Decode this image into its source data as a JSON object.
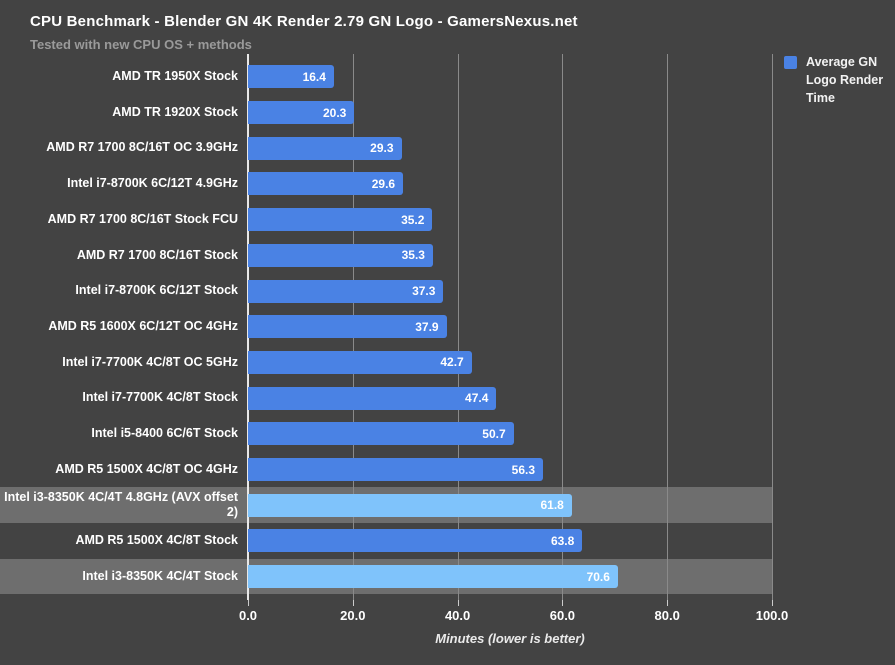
{
  "header": {
    "title": "CPU Benchmark - Blender GN 4K Render 2.79 GN Logo - GamersNexus.net",
    "subtitle": "Tested with new CPU OS + methods"
  },
  "legend": {
    "label": "Average GN Logo Render Time",
    "swatch_color": "#4a82e4",
    "position": "top-right"
  },
  "chart_data": {
    "type": "bar",
    "orientation": "horizontal",
    "title": "CPU Benchmark - Blender GN 4K Render 2.79 GN Logo - GamersNexus.net",
    "subtitle": "Tested with new CPU OS + methods",
    "series_name": "Average GN Logo Render Time",
    "xlabel": "Minutes (lower is better)",
    "ylabel": "",
    "xlim": [
      0,
      100
    ],
    "grid": true,
    "x_tick_values": [
      0,
      20,
      40,
      60,
      80,
      100
    ],
    "x_tick_labels": [
      "0.0",
      "20.0",
      "40.0",
      "60.0",
      "80.0",
      "100.0"
    ],
    "categories": [
      "AMD TR 1950X Stock",
      "AMD TR 1920X Stock",
      "AMD R7 1700 8C/16T OC 3.9GHz",
      "Intel i7-8700K 6C/12T 4.9GHz",
      "AMD R7 1700 8C/16T Stock FCU",
      "AMD R7 1700 8C/16T Stock",
      "Intel i7-8700K 6C/12T Stock",
      "AMD R5 1600X 6C/12T OC 4GHz",
      "Intel i7-7700K 4C/8T OC 5GHz",
      "Intel i7-7700K 4C/8T Stock",
      "Intel i5-8400 6C/6T Stock",
      "AMD R5 1500X 4C/8T OC 4GHz",
      "Intel i3-8350K 4C/4T 4.8GHz (AVX offset 2)",
      "AMD R5 1500X 4C/8T Stock",
      "Intel i3-8350K 4C/4T Stock"
    ],
    "values": [
      16.4,
      20.3,
      29.3,
      29.6,
      35.2,
      35.3,
      37.3,
      37.9,
      42.7,
      47.4,
      50.7,
      56.3,
      61.8,
      63.8,
      70.6
    ],
    "value_labels": [
      "16.4",
      "20.3",
      "29.3",
      "29.6",
      "35.2",
      "35.3",
      "37.3",
      "37.9",
      "42.7",
      "47.4",
      "50.7",
      "56.3",
      "61.8",
      "63.8",
      "70.6"
    ],
    "highlighted": [
      false,
      false,
      false,
      false,
      false,
      false,
      false,
      false,
      false,
      false,
      false,
      false,
      true,
      false,
      true
    ],
    "colors": {
      "background": "#434343",
      "bar": "#4a82e4",
      "bar_highlighted": "#7fc3fb",
      "row_highlight_band": "#6e6e6e",
      "gridline": "#8a8a8a",
      "text": "#ffffff"
    }
  }
}
